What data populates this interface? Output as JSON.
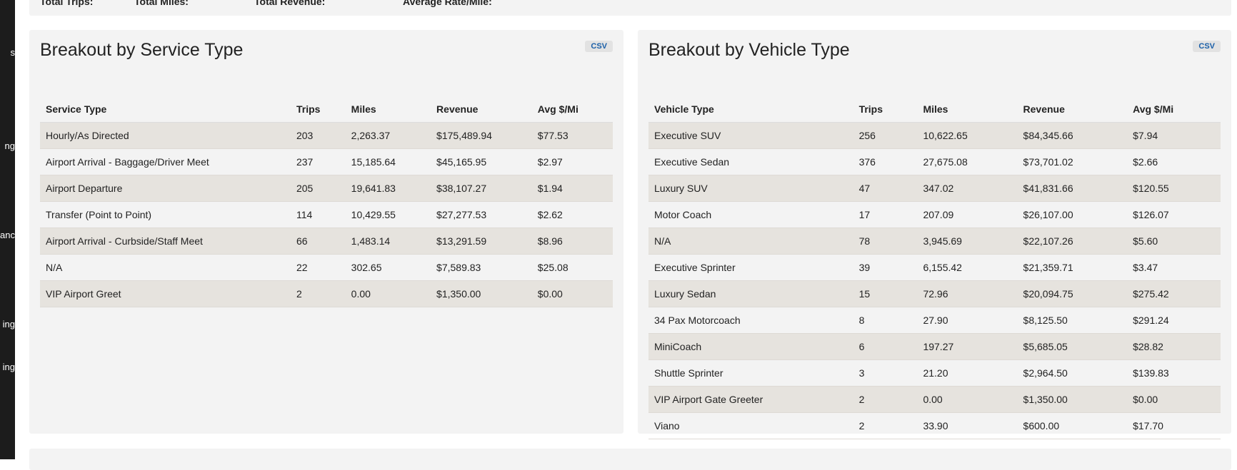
{
  "sidebar": {
    "items": [
      "s",
      "ng",
      "tanc",
      "ing",
      "ing"
    ]
  },
  "summary": {
    "labels": [
      "Total Trips:",
      "Total Miles:",
      "Total Revenue:",
      "Average Rate/Mile:"
    ]
  },
  "panels": [
    {
      "title": "Breakout by Service Type",
      "csv": "CSV",
      "columns": [
        "Service Type",
        "Trips",
        "Miles",
        "Revenue",
        "Avg $/Mi"
      ],
      "rows": [
        [
          "Hourly/As Directed",
          "203",
          "2,263.37",
          "$175,489.94",
          "$77.53"
        ],
        [
          "Airport Arrival - Baggage/Driver Meet",
          "237",
          "15,185.64",
          "$45,165.95",
          "$2.97"
        ],
        [
          "Airport Departure",
          "205",
          "19,641.83",
          "$38,107.27",
          "$1.94"
        ],
        [
          "Transfer (Point to Point)",
          "114",
          "10,429.55",
          "$27,277.53",
          "$2.62"
        ],
        [
          "Airport Arrival - Curbside/Staff Meet",
          "66",
          "1,483.14",
          "$13,291.59",
          "$8.96"
        ],
        [
          "N/A",
          "22",
          "302.65",
          "$7,589.83",
          "$25.08"
        ],
        [
          "VIP Airport Greet",
          "2",
          "0.00",
          "$1,350.00",
          "$0.00"
        ]
      ]
    },
    {
      "title": "Breakout by Vehicle Type",
      "csv": "CSV",
      "columns": [
        "Vehicle Type",
        "Trips",
        "Miles",
        "Revenue",
        "Avg $/Mi"
      ],
      "rows": [
        [
          "Executive SUV",
          "256",
          "10,622.65",
          "$84,345.66",
          "$7.94"
        ],
        [
          "Executive Sedan",
          "376",
          "27,675.08",
          "$73,701.02",
          "$2.66"
        ],
        [
          "Luxury SUV",
          "47",
          "347.02",
          "$41,831.66",
          "$120.55"
        ],
        [
          "Motor Coach",
          "17",
          "207.09",
          "$26,107.00",
          "$126.07"
        ],
        [
          "N/A",
          "78",
          "3,945.69",
          "$22,107.26",
          "$5.60"
        ],
        [
          "Executive Sprinter",
          "39",
          "6,155.42",
          "$21,359.71",
          "$3.47"
        ],
        [
          "Luxury Sedan",
          "15",
          "72.96",
          "$20,094.75",
          "$275.42"
        ],
        [
          "34 Pax Motorcoach",
          "8",
          "27.90",
          "$8,125.50",
          "$291.24"
        ],
        [
          "MiniCoach",
          "6",
          "197.27",
          "$5,685.05",
          "$28.82"
        ],
        [
          "Shuttle Sprinter",
          "3",
          "21.20",
          "$2,964.50",
          "$139.83"
        ],
        [
          "VIP Airport Gate Greeter",
          "2",
          "0.00",
          "$1,350.00",
          "$0.00"
        ],
        [
          "Viano",
          "2",
          "33.90",
          "$600.00",
          "$17.70"
        ]
      ]
    }
  ]
}
